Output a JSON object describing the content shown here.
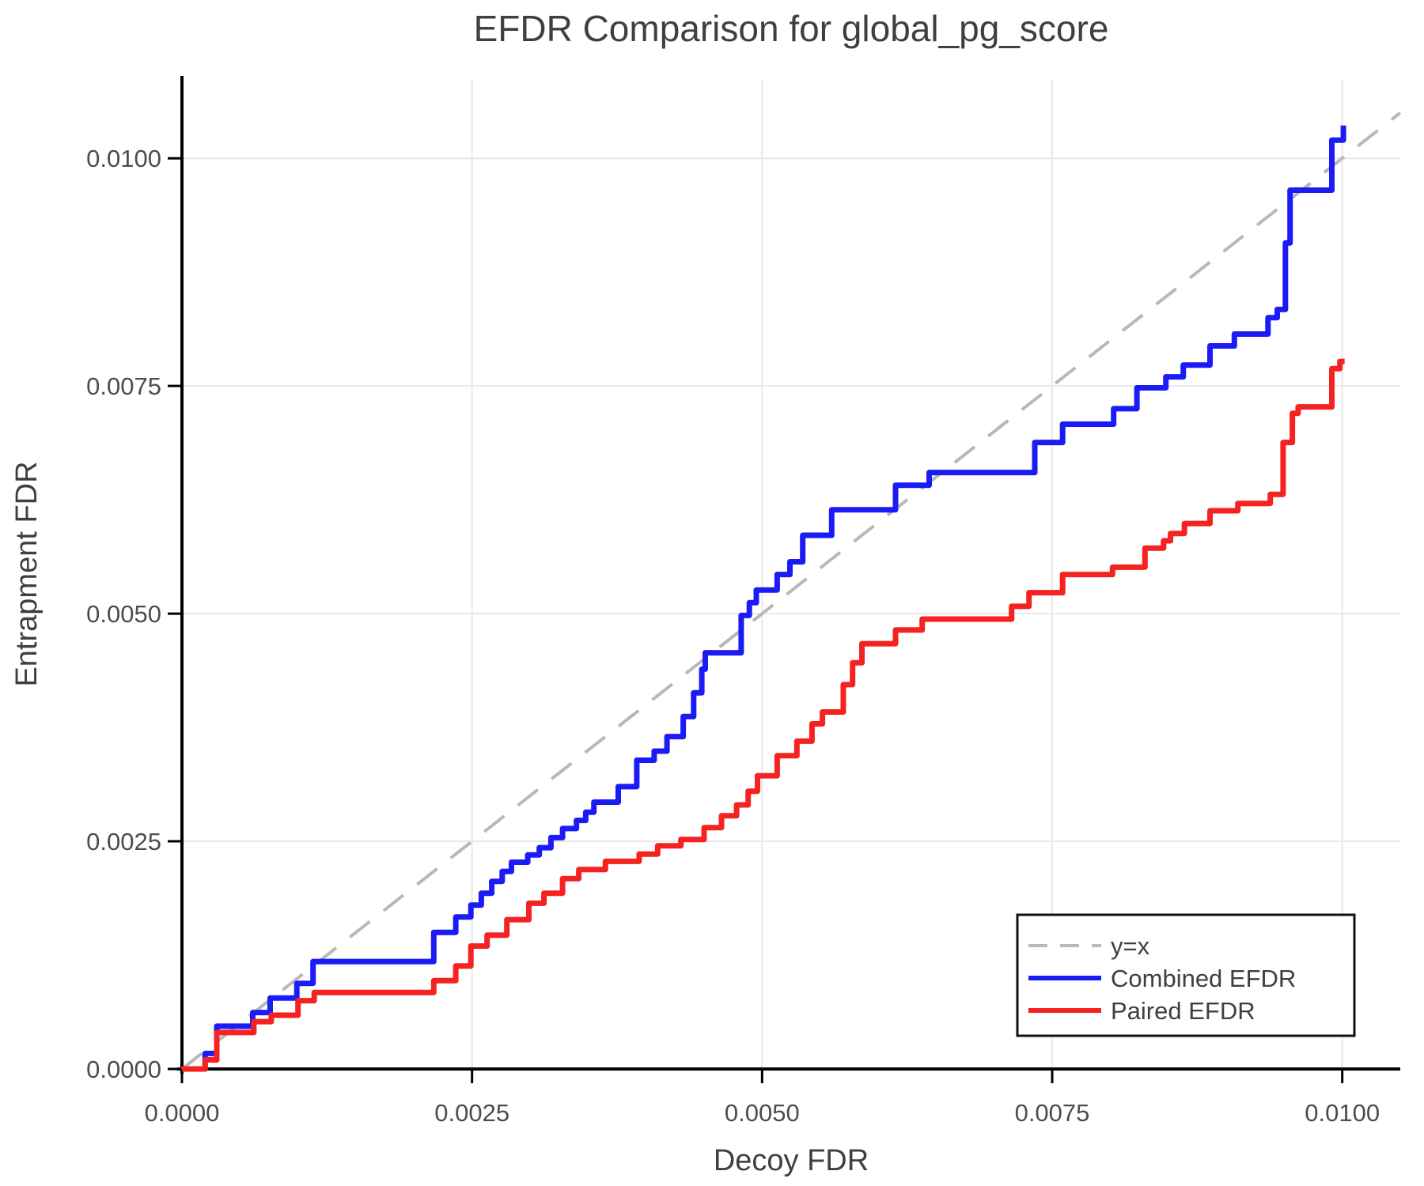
{
  "title": "EFDR Comparison for global_pg_score",
  "chart_data": {
    "type": "line",
    "title": "EFDR Comparison for global_pg_score",
    "xlabel": "Decoy FDR",
    "ylabel": "Entrapment FDR",
    "xlim": [
      0,
      0.0105
    ],
    "ylim": [
      0,
      0.01087
    ],
    "grid": true,
    "legend_position": "bottom-right",
    "x_ticks": [
      {
        "value": 0.0,
        "label": "0.0000"
      },
      {
        "value": 0.0025,
        "label": "0.0025"
      },
      {
        "value": 0.005,
        "label": "0.0050"
      },
      {
        "value": 0.0075,
        "label": "0.0075"
      },
      {
        "value": 0.01,
        "label": "0.0100"
      }
    ],
    "y_ticks": [
      {
        "value": 0.0,
        "label": "0.0000"
      },
      {
        "value": 0.0025,
        "label": "0.0025"
      },
      {
        "value": 0.005,
        "label": "0.0050"
      },
      {
        "value": 0.0075,
        "label": "0.0075"
      },
      {
        "value": 0.01,
        "label": "0.0100"
      }
    ],
    "series": [
      {
        "name": "y=x",
        "color": "#b8b8b8",
        "style": "dashed",
        "width": 4,
        "points": [
          [
            0,
            0
          ],
          [
            0.0105,
            0.0105
          ]
        ]
      },
      {
        "name": "Combined EFDR",
        "color": "#1b1bf5",
        "style": "step",
        "width": 7,
        "points": [
          [
            0,
            0
          ],
          [
            0.0002,
            0.00017
          ],
          [
            0.0003,
            0.00047
          ],
          [
            0.00061,
            0.00062
          ],
          [
            0.00076,
            0.00078
          ],
          [
            0.00099,
            0.00094
          ],
          [
            0.00113,
            0.00118
          ],
          [
            0.00217,
            0.0015
          ],
          [
            0.00236,
            0.00167
          ],
          [
            0.00249,
            0.0018
          ],
          [
            0.00258,
            0.00193
          ],
          [
            0.00267,
            0.00206
          ],
          [
            0.00276,
            0.00217
          ],
          [
            0.00284,
            0.00227
          ],
          [
            0.00298,
            0.00235
          ],
          [
            0.00308,
            0.00243
          ],
          [
            0.00318,
            0.00254
          ],
          [
            0.00328,
            0.00264
          ],
          [
            0.0034,
            0.00273
          ],
          [
            0.00348,
            0.00282
          ],
          [
            0.00355,
            0.00293
          ],
          [
            0.00376,
            0.0031
          ],
          [
            0.00392,
            0.00339
          ],
          [
            0.00407,
            0.00349
          ],
          [
            0.00418,
            0.00365
          ],
          [
            0.00432,
            0.00387
          ],
          [
            0.00441,
            0.00413
          ],
          [
            0.00448,
            0.00439
          ],
          [
            0.00451,
            0.00457
          ],
          [
            0.00482,
            0.00498
          ],
          [
            0.00489,
            0.00512
          ],
          [
            0.00495,
            0.00526
          ],
          [
            0.00513,
            0.00543
          ],
          [
            0.00524,
            0.00557
          ],
          [
            0.00535,
            0.00586
          ],
          [
            0.0056,
            0.00614
          ],
          [
            0.00615,
            0.00641
          ],
          [
            0.00644,
            0.00655
          ],
          [
            0.00735,
            0.00688
          ],
          [
            0.00759,
            0.00708
          ],
          [
            0.00803,
            0.00725
          ],
          [
            0.00823,
            0.00748
          ],
          [
            0.00848,
            0.0076
          ],
          [
            0.00863,
            0.00773
          ],
          [
            0.00886,
            0.00794
          ],
          [
            0.00907,
            0.00807
          ],
          [
            0.00936,
            0.00825
          ],
          [
            0.00944,
            0.00834
          ],
          [
            0.00951,
            0.00907
          ],
          [
            0.00955,
            0.00965
          ],
          [
            0.00991,
            0.0102
          ],
          [
            0.00999,
            0.0102
          ],
          [
            0.01001,
            0.01036
          ]
        ]
      },
      {
        "name": "Paired EFDR",
        "color": "#f52222",
        "style": "step",
        "width": 7,
        "points": [
          [
            0,
            0
          ],
          [
            0.0002,
            0.0001
          ],
          [
            0.0003,
            0.0004
          ],
          [
            0.00062,
            0.00052
          ],
          [
            0.00077,
            0.00059
          ],
          [
            0.001,
            0.00075
          ],
          [
            0.00114,
            0.00084
          ],
          [
            0.00217,
            0.00097
          ],
          [
            0.00236,
            0.00113
          ],
          [
            0.00249,
            0.00135
          ],
          [
            0.00263,
            0.00147
          ],
          [
            0.0028,
            0.00164
          ],
          [
            0.00299,
            0.00182
          ],
          [
            0.00312,
            0.00193
          ],
          [
            0.00328,
            0.00209
          ],
          [
            0.00342,
            0.00219
          ],
          [
            0.00365,
            0.00228
          ],
          [
            0.00394,
            0.00236
          ],
          [
            0.0041,
            0.00245
          ],
          [
            0.0043,
            0.00252
          ],
          [
            0.0045,
            0.00265
          ],
          [
            0.00465,
            0.00278
          ],
          [
            0.00478,
            0.0029
          ],
          [
            0.00488,
            0.00305
          ],
          [
            0.00496,
            0.00322
          ],
          [
            0.00513,
            0.00344
          ],
          [
            0.0053,
            0.0036
          ],
          [
            0.00543,
            0.00379
          ],
          [
            0.00552,
            0.00392
          ],
          [
            0.0057,
            0.00422
          ],
          [
            0.00578,
            0.00446
          ],
          [
            0.00586,
            0.00467
          ],
          [
            0.00615,
            0.00482
          ],
          [
            0.00638,
            0.00494
          ],
          [
            0.00715,
            0.00508
          ],
          [
            0.0073,
            0.00523
          ],
          [
            0.00759,
            0.00543
          ],
          [
            0.00802,
            0.00551
          ],
          [
            0.0083,
            0.00572
          ],
          [
            0.00846,
            0.0058
          ],
          [
            0.00852,
            0.00588
          ],
          [
            0.00864,
            0.00599
          ],
          [
            0.00886,
            0.00613
          ],
          [
            0.0091,
            0.00621
          ],
          [
            0.00938,
            0.00631
          ],
          [
            0.00949,
            0.00688
          ],
          [
            0.00957,
            0.0072
          ],
          [
            0.00962,
            0.00727
          ],
          [
            0.00991,
            0.00769
          ],
          [
            0.00998,
            0.00777
          ],
          [
            0.01002,
            0.00777
          ]
        ]
      }
    ]
  },
  "legend": {
    "border_color": "#111111",
    "background": "#ffffff",
    "items": [
      {
        "label": "y=x"
      },
      {
        "label": "Combined EFDR"
      },
      {
        "label": "Paired EFDR"
      }
    ]
  },
  "colors": {
    "grid": "#e8e8e8",
    "axis": "#000000",
    "text": "#3f3f3f",
    "tick_text": "#4d4d4d"
  }
}
